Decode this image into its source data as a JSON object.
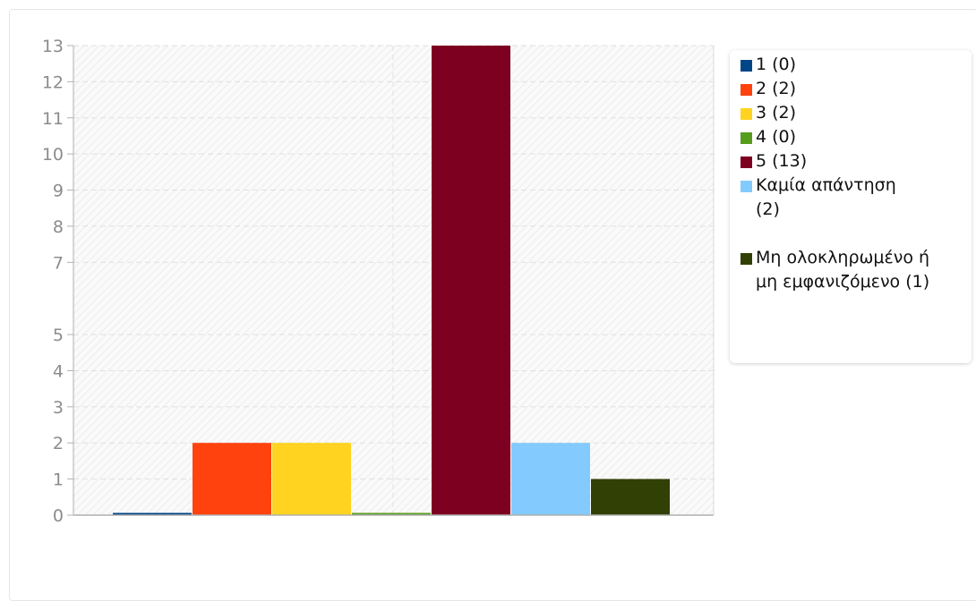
{
  "chart_data": {
    "type": "bar",
    "categories": [
      "1",
      "2",
      "3",
      "4",
      "5",
      "Καμία απάντηση",
      "Μη ολοκληρωμένο ή μη εμφανιζόμενο"
    ],
    "values": [
      0,
      2,
      2,
      0,
      13,
      2,
      1
    ],
    "colors": [
      "#004586",
      "#ff420e",
      "#ffd320",
      "#579d1c",
      "#7e0021",
      "#83caff",
      "#314004"
    ],
    "y_ticks": [
      "0",
      "1",
      "2",
      "3",
      "4",
      "5",
      "7",
      "8",
      "9",
      "10",
      "11",
      "12",
      "13"
    ],
    "ylim": [
      0,
      13
    ],
    "grid": true,
    "legend_position": "right",
    "legend": [
      {
        "label": "1 (0)",
        "color": "#004586"
      },
      {
        "label": "2 (2)",
        "color": "#ff420e"
      },
      {
        "label": "3 (2)",
        "color": "#ffd320"
      },
      {
        "label": "4 (0)",
        "color": "#579d1c"
      },
      {
        "label": "5 (13)",
        "color": "#7e0021"
      },
      {
        "label": "Καμία απάντηση (2)",
        "color": "#83caff"
      },
      {
        "label": "Μη ολοκληρωμένο ή μη εμφανιζόμενο (1)",
        "color": "#314004"
      }
    ]
  }
}
